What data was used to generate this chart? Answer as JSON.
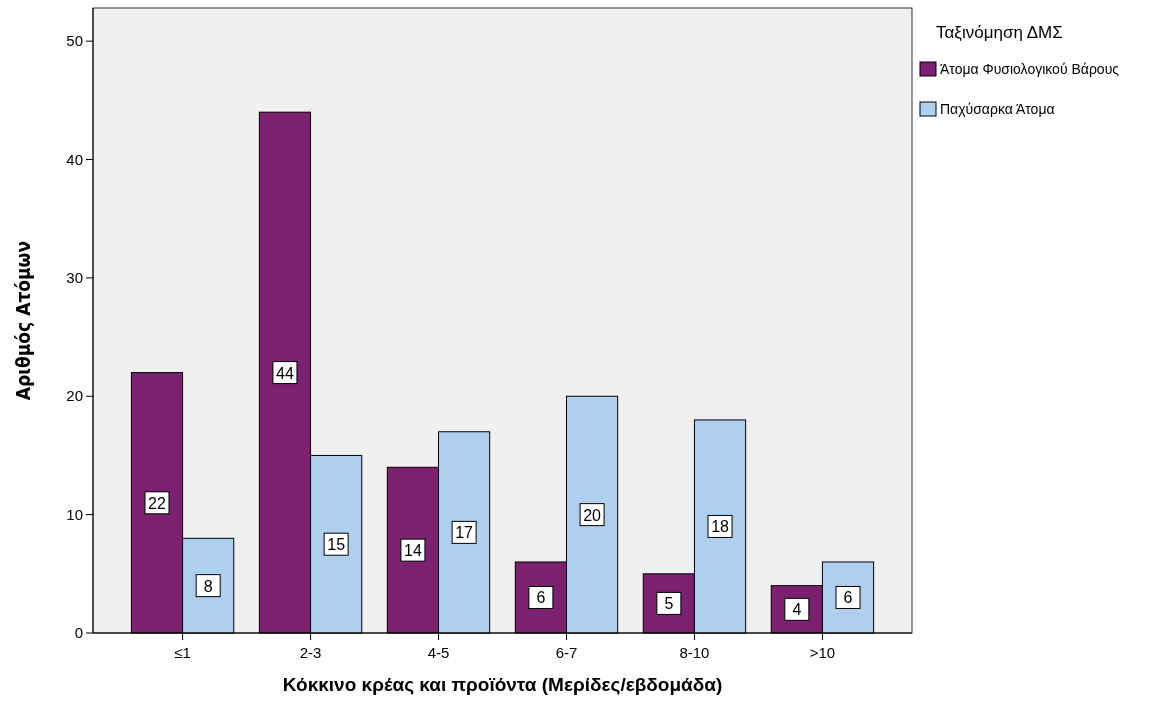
{
  "chart_data": {
    "type": "bar",
    "xlabel": "Κόκκινο κρέας και προϊόντα (Μερίδες/εβδομάδα)",
    "ylabel": "Αριθμός Ατόμων",
    "legend_title": "Ταξινόμηση ΔΜΣ",
    "categories": [
      "≤1",
      "2-3",
      "4-5",
      "6-7",
      "8-10",
      ">10"
    ],
    "series": [
      {
        "name": "Άτομα Φυσιολογικού Βάρους",
        "color": "#7b2170",
        "values": [
          22,
          44,
          14,
          6,
          5,
          4
        ]
      },
      {
        "name": "Παχύσαρκα Άτομα",
        "color": "#aecfee",
        "values": [
          8,
          15,
          17,
          20,
          18,
          6
        ]
      }
    ],
    "ylim": [
      0,
      52.8
    ],
    "yticks": [
      0,
      10,
      20,
      30,
      40,
      50
    ],
    "data_labels": true,
    "legend": "top right",
    "grid": false
  }
}
